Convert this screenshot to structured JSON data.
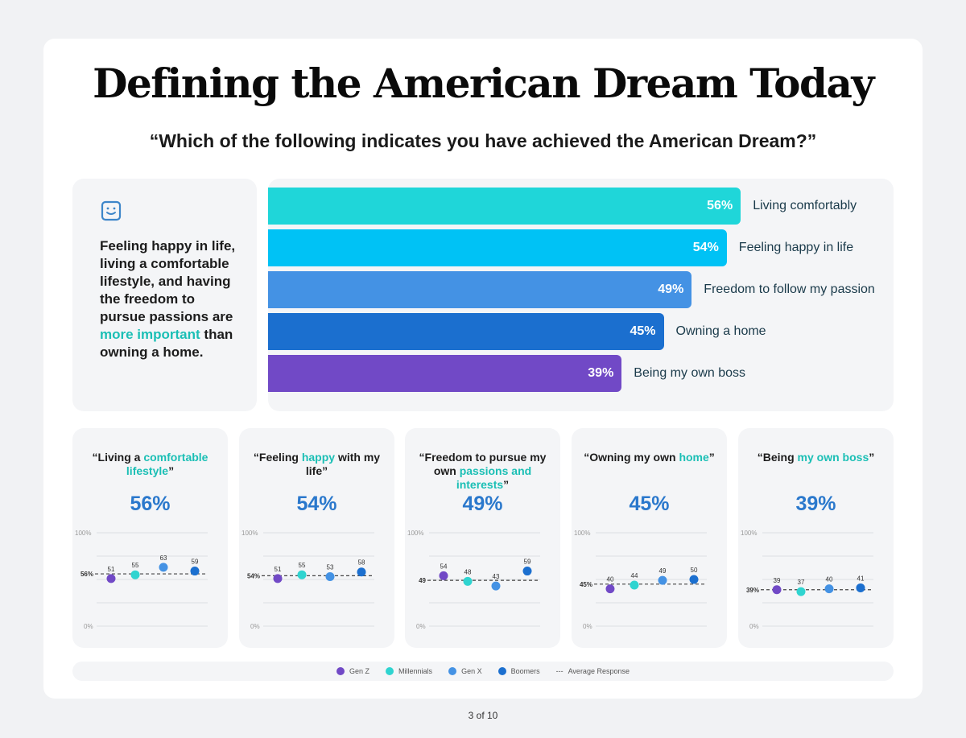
{
  "title": "Defining the American Dream Today",
  "subtitle": "“Which of the following indicates you have achieved the American Dream?”",
  "summary": {
    "icon": "smiley-face-icon",
    "parts": [
      {
        "t": "Feeling happy in life, living a comfortable lifestyle, and having the freedom to pursue passions are "
      },
      {
        "t": "more important",
        "hl": true
      },
      {
        "t": " than owning a home."
      }
    ]
  },
  "chart_data": [
    {
      "type": "bar",
      "orientation": "horizontal",
      "categories": [
        "Living comfortably",
        "Feeling happy in life",
        "Freedom to follow my passion",
        "Owning a home",
        "Being my own boss"
      ],
      "values": [
        56,
        54,
        49,
        45,
        39
      ],
      "value_labels": [
        "56%",
        "54%",
        "49%",
        "45%",
        "39%"
      ],
      "colors": [
        "#1fd6d9",
        "#00c2f5",
        "#4492e4",
        "#1b6fcf",
        "#7149c6"
      ]
    },
    {
      "type": "scatter",
      "quote": [
        {
          "t": "“Living a "
        },
        {
          "t": "comfortable lifestyle",
          "hl": true
        },
        {
          "t": "”"
        }
      ],
      "headline": "56%",
      "average": 56,
      "average_label": "56%",
      "values": [
        51,
        55,
        63,
        59
      ],
      "ylim": [
        0,
        100
      ],
      "ticks": [
        "100%",
        "0%"
      ]
    },
    {
      "type": "scatter",
      "quote": [
        {
          "t": "“Feeling "
        },
        {
          "t": "happy",
          "hl": true
        },
        {
          "t": " with my life”"
        }
      ],
      "headline": "54%",
      "average": 54,
      "average_label": "54%",
      "values": [
        51,
        55,
        53,
        58
      ],
      "ylim": [
        0,
        100
      ],
      "ticks": [
        "100%",
        "0%"
      ]
    },
    {
      "type": "scatter",
      "quote": [
        {
          "t": "“Freedom to pursue my own "
        },
        {
          "t": "passions and interests",
          "hl": true
        },
        {
          "t": "”"
        }
      ],
      "headline": "49%",
      "average": 49,
      "average_label": "49",
      "values": [
        54,
        48,
        43,
        59
      ],
      "ylim": [
        0,
        100
      ],
      "ticks": [
        "100%",
        "0%"
      ]
    },
    {
      "type": "scatter",
      "quote": [
        {
          "t": "“Owning my own "
        },
        {
          "t": "home",
          "hl": true
        },
        {
          "t": "”"
        }
      ],
      "headline": "45%",
      "average": 45,
      "average_label": "45%",
      "values": [
        40,
        44,
        49,
        50
      ],
      "ylim": [
        0,
        100
      ],
      "ticks": [
        "100%",
        "0%"
      ]
    },
    {
      "type": "scatter",
      "quote": [
        {
          "t": "“Being "
        },
        {
          "t": "my own boss",
          "hl": true
        },
        {
          "t": "”"
        }
      ],
      "headline": "39%",
      "average": 39,
      "average_label": "39%",
      "values": [
        39,
        37,
        40,
        41
      ],
      "ylim": [
        0,
        100
      ],
      "ticks": [
        "100%",
        "0%"
      ]
    }
  ],
  "legend": [
    {
      "name": "Gen Z",
      "color": "#7149c6"
    },
    {
      "name": "Millennials",
      "color": "#2fd4d0"
    },
    {
      "name": "Gen X",
      "color": "#4492e4"
    },
    {
      "name": "Boomers",
      "color": "#1b6fcf"
    },
    {
      "name": "Average Response",
      "dashed": true
    }
  ],
  "footer": "3 of 10"
}
